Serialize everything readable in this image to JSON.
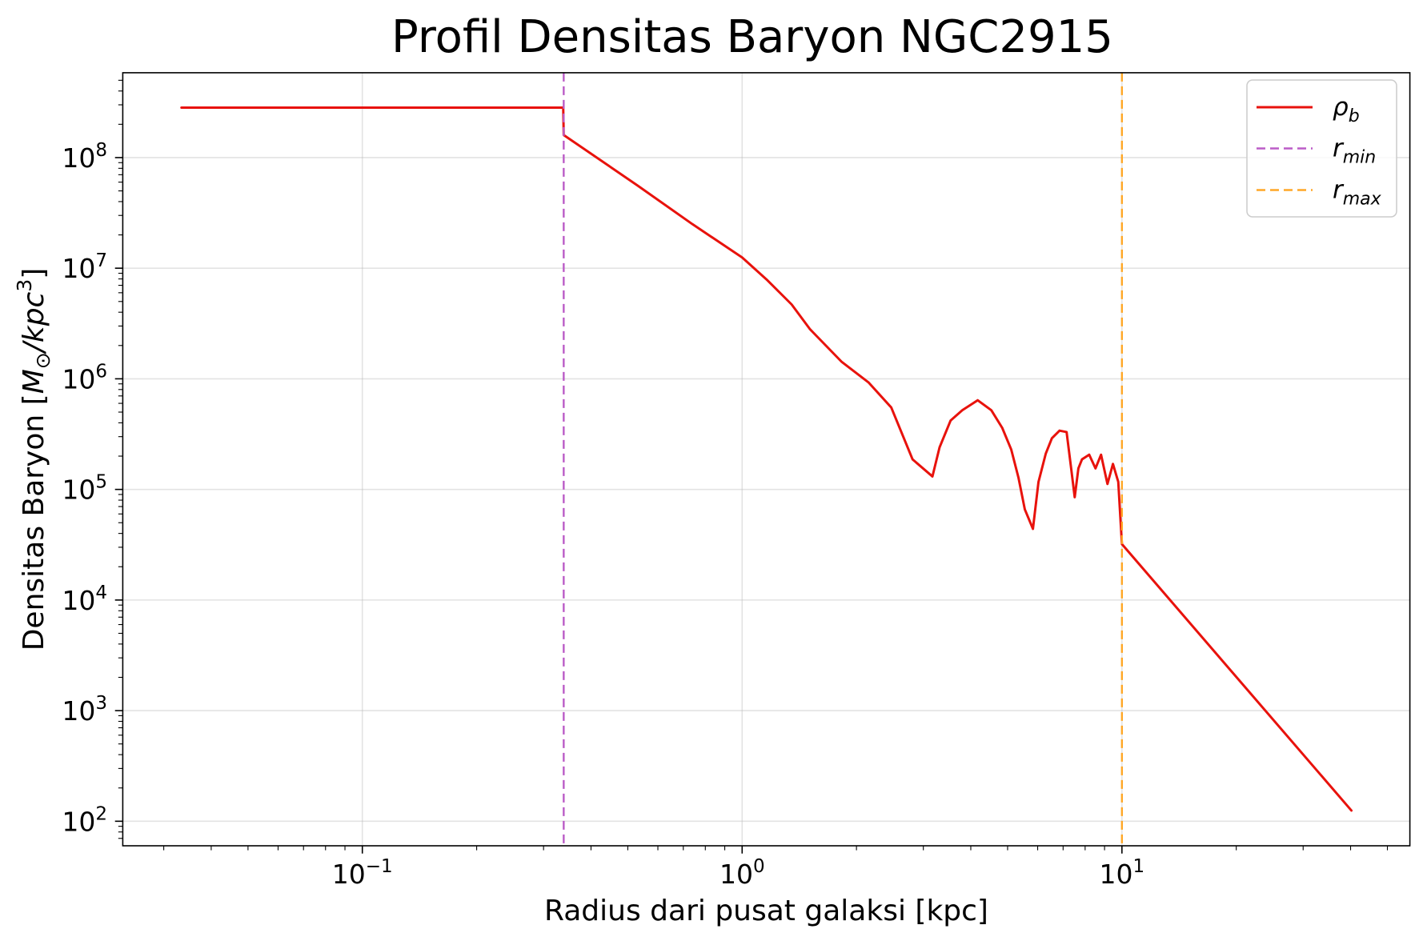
{
  "chart_data": {
    "type": "line",
    "title": "Profil Densitas Baryon NGC2915",
    "xlabel": "Radius dari pusat galaksi [kpc]",
    "ylabel": {
      "text": "Densitas Baryon [",
      "symbol": "M",
      "symbol_sub": "⊙",
      "unit": "/kpc",
      "unit_sup": "3",
      "close": "]"
    },
    "x_scale": "log",
    "y_scale": "log",
    "xlim": [
      0.0234,
      57.3
    ],
    "ylim": [
      60,
      585000000.0
    ],
    "grid": true,
    "legend_position": "top-right",
    "xticks": [
      {
        "value": 0.1,
        "base": "10",
        "exp": "−1"
      },
      {
        "value": 1,
        "base": "10",
        "exp": "0"
      },
      {
        "value": 10,
        "base": "10",
        "exp": "1"
      }
    ],
    "yticks": [
      {
        "value": 100.0,
        "base": "10",
        "exp": "2"
      },
      {
        "value": 1000.0,
        "base": "10",
        "exp": "3"
      },
      {
        "value": 10000.0,
        "base": "10",
        "exp": "4"
      },
      {
        "value": 100000.0,
        "base": "10",
        "exp": "5"
      },
      {
        "value": 1000000.0,
        "base": "10",
        "exp": "6"
      },
      {
        "value": 10000000.0,
        "base": "10",
        "exp": "7"
      },
      {
        "value": 100000000.0,
        "base": "10",
        "exp": "8"
      }
    ],
    "series": [
      {
        "label": {
          "main": "ρ",
          "sub": "b"
        },
        "color": "#e8120c",
        "line_style": "solid",
        "x": [
          0.0334,
          0.338,
          0.339,
          0.53,
          0.74,
          1.0,
          1.16,
          1.35,
          1.51,
          1.83,
          2.15,
          2.47,
          2.81,
          3.17,
          3.31,
          3.54,
          3.8,
          4.17,
          4.53,
          4.84,
          5.11,
          5.34,
          5.55,
          5.83,
          6.03,
          6.3,
          6.54,
          6.85,
          7.15,
          7.35,
          7.51,
          7.68,
          7.85,
          8.2,
          8.52,
          8.81,
          9.16,
          9.47,
          9.78,
          10.0,
          40.2
        ],
        "y": [
          283000000.0,
          283000000.0,
          160000000.0,
          56000000.0,
          25000000.0,
          12500000.0,
          7900000.0,
          4700000.0,
          2800000.0,
          1420000.0,
          930000.0,
          550000.0,
          187000.0,
          131000.0,
          240000.0,
          420000.0,
          520000.0,
          640000.0,
          520000.0,
          360000.0,
          230000.0,
          128000.0,
          66000.0,
          44000.0,
          117000.0,
          210000.0,
          290000.0,
          340000.0,
          330000.0,
          155000.0,
          85000.0,
          155000.0,
          187000.0,
          206000.0,
          155000.0,
          206000.0,
          112000.0,
          170000.0,
          117000.0,
          32000.0,
          125
        ]
      }
    ],
    "reference_lines": [
      {
        "label": {
          "main": "r",
          "sub": "min"
        },
        "orientation": "vertical",
        "x": 0.339,
        "color": "#bb5cc7",
        "line_style": "dashed"
      },
      {
        "label": {
          "main": "r",
          "sub": "max"
        },
        "orientation": "vertical",
        "x": 10.0,
        "color": "#ffa726",
        "line_style": "dashed"
      }
    ]
  }
}
